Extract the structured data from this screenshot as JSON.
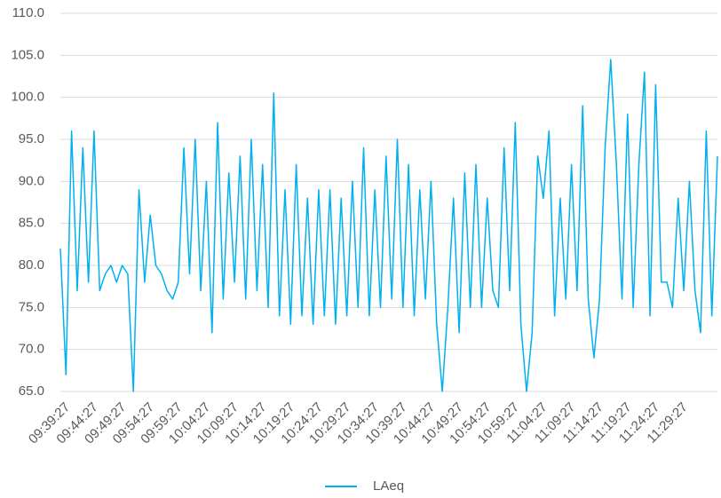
{
  "chart_data": {
    "type": "line",
    "categories": [
      "09:39:27",
      null,
      null,
      null,
      null,
      "09:44:27",
      null,
      null,
      null,
      null,
      "09:49:27",
      null,
      null,
      null,
      null,
      "09:54:27",
      null,
      null,
      null,
      null,
      "09:59:27",
      null,
      null,
      null,
      null,
      "10:04:27",
      null,
      null,
      null,
      null,
      "10:09:27",
      null,
      null,
      null,
      null,
      "10:14:27",
      null,
      null,
      null,
      null,
      "10:19:27",
      null,
      null,
      null,
      null,
      "10:24:27",
      null,
      null,
      null,
      null,
      "10:29:27",
      null,
      null,
      null,
      null,
      "10:34:27",
      null,
      null,
      null,
      null,
      "10:39:27",
      null,
      null,
      null,
      null,
      "10:44:27",
      null,
      null,
      null,
      null,
      "10:49:27",
      null,
      null,
      null,
      null,
      "10:54:27",
      null,
      null,
      null,
      null,
      "10:59:27",
      null,
      null,
      null,
      null,
      "11:04:27",
      null,
      null,
      null,
      null,
      "11:09:27",
      null,
      null,
      null,
      null,
      "11:14:27",
      null,
      null,
      null,
      null,
      "11:19:27",
      null,
      null,
      null,
      null,
      "11:24:27",
      null,
      null,
      null,
      null,
      "11:29:27",
      null,
      null,
      null,
      null,
      null,
      null,
      null
    ],
    "series": [
      {
        "name": "LAeq",
        "color": "#00b0f0",
        "values": [
          82,
          67,
          96,
          77,
          94,
          78,
          96,
          77,
          79,
          80,
          78,
          80,
          79,
          65,
          89,
          78,
          86,
          80,
          79,
          77,
          76,
          78,
          94,
          79,
          95,
          77,
          90,
          72,
          97,
          76,
          91,
          78,
          93,
          76,
          95,
          77,
          92,
          75,
          100.5,
          74,
          89,
          73,
          92,
          74,
          88,
          73,
          89,
          74,
          89,
          73,
          88,
          74,
          90,
          75,
          94,
          74,
          89,
          75,
          93,
          76,
          95,
          75,
          92,
          74,
          89,
          76,
          90,
          73,
          65,
          75,
          88,
          72,
          91,
          75,
          92,
          75,
          88,
          77,
          75,
          94,
          77,
          97,
          73,
          65,
          72,
          93,
          88,
          96,
          74,
          88,
          76,
          92,
          77,
          99,
          76,
          69,
          76,
          94,
          104.5,
          92,
          76,
          98,
          75,
          92,
          103,
          74,
          101.5,
          78,
          78,
          75,
          88,
          77,
          90,
          77,
          72,
          96,
          74,
          93
        ]
      }
    ],
    "ylim": [
      65,
      110
    ],
    "yticks": [
      {
        "value": 65,
        "label": "65.0"
      },
      {
        "value": 70,
        "label": "70.0"
      },
      {
        "value": 75,
        "label": "75.0"
      },
      {
        "value": 80,
        "label": "80.0"
      },
      {
        "value": 85,
        "label": "85.0"
      },
      {
        "value": 90,
        "label": "90.0"
      },
      {
        "value": 95,
        "label": "95.0"
      },
      {
        "value": 100,
        "label": "100.0"
      },
      {
        "value": 105,
        "label": "105.0"
      },
      {
        "value": 110,
        "label": "110.0"
      }
    ],
    "grid": true,
    "legend": "bottom"
  }
}
